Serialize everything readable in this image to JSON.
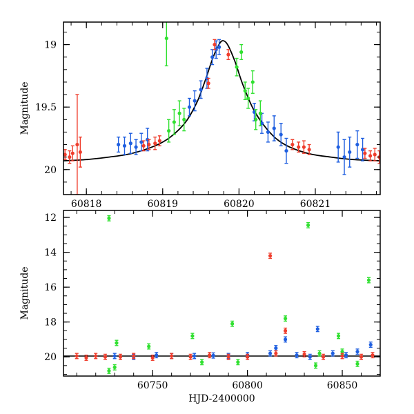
{
  "chart_data": [
    {
      "type": "scatter",
      "title": "",
      "xlabel": "",
      "ylabel": "Magnitude",
      "xlim": [
        60817.7,
        60821.85
      ],
      "ylim": [
        20.2,
        18.82
      ],
      "y_inverted": true,
      "xticks": [
        60818,
        60819,
        60820,
        60821
      ],
      "yticks": [
        19,
        19.5,
        20
      ],
      "ytick_labels": [
        "19",
        "19.5",
        "20"
      ],
      "model_curve": {
        "color": "#000000",
        "peak_x": 60819.78,
        "peak_mag": 18.97,
        "baseline_mag": 19.93,
        "x": [
          60817.7,
          60818.0,
          60818.3,
          60818.6,
          60818.9,
          60819.1,
          60819.3,
          60819.45,
          60819.55,
          60819.65,
          60819.72,
          60819.78,
          60819.85,
          60819.95,
          60820.05,
          60820.2,
          60820.4,
          60820.6,
          60820.9,
          60821.2,
          60821.5,
          60821.85
        ],
        "y": [
          19.93,
          19.92,
          19.9,
          19.87,
          19.81,
          19.74,
          19.62,
          19.46,
          19.3,
          19.12,
          19.02,
          18.97,
          19.0,
          19.14,
          19.32,
          19.53,
          19.7,
          19.8,
          19.87,
          19.9,
          19.92,
          19.93
        ]
      },
      "series": [
        {
          "color": "#1f5fe0",
          "points": [
            [
              60818.42,
              19.8,
              0.06
            ],
            [
              60818.5,
              19.81,
              0.07
            ],
            [
              60818.58,
              19.79,
              0.08
            ],
            [
              60818.65,
              19.82,
              0.06
            ],
            [
              60818.72,
              19.78,
              0.07
            ],
            [
              60818.8,
              19.76,
              0.09
            ],
            [
              60819.35,
              19.5,
              0.07
            ],
            [
              60819.42,
              19.45,
              0.08
            ],
            [
              60819.5,
              19.36,
              0.07
            ],
            [
              60819.58,
              19.27,
              0.08
            ],
            [
              60819.65,
              19.1,
              0.06
            ],
            [
              60819.7,
              19.04,
              0.07
            ],
            [
              60819.74,
              19.02,
              0.06
            ],
            [
              60820.2,
              19.54,
              0.07
            ],
            [
              60820.3,
              19.63,
              0.08
            ],
            [
              60820.38,
              19.7,
              0.08
            ],
            [
              60820.46,
              19.67,
              0.1
            ],
            [
              60820.55,
              19.72,
              0.09
            ],
            [
              60820.62,
              19.85,
              0.1
            ],
            [
              60821.3,
              19.82,
              0.12
            ],
            [
              60821.38,
              19.9,
              0.14
            ],
            [
              60821.45,
              19.86,
              0.12
            ],
            [
              60821.55,
              19.8,
              0.11
            ],
            [
              60821.62,
              19.84,
              0.09
            ]
          ]
        },
        {
          "color": "#30e030",
          "points": [
            [
              60819.05,
              18.95,
              0.22
            ],
            [
              60819.08,
              19.69,
              0.09
            ],
            [
              60819.15,
              19.62,
              0.1
            ],
            [
              60819.22,
              19.55,
              0.1
            ],
            [
              60819.28,
              19.6,
              0.09
            ],
            [
              60819.97,
              19.18,
              0.07
            ],
            [
              60820.03,
              19.06,
              0.06
            ],
            [
              60820.08,
              19.37,
              0.07
            ],
            [
              60820.12,
              19.43,
              0.08
            ],
            [
              60820.18,
              19.3,
              0.09
            ],
            [
              60820.22,
              19.6,
              0.08
            ],
            [
              60820.28,
              19.55,
              0.1
            ]
          ]
        },
        {
          "color": "#ef3d2c",
          "points": [
            [
              60817.72,
              19.88,
              0.04
            ],
            [
              60817.78,
              19.9,
              0.05
            ],
            [
              60817.82,
              19.87,
              0.06
            ],
            [
              60817.88,
              19.8,
              0.4
            ],
            [
              60817.92,
              19.86,
              0.12
            ],
            [
              60818.75,
              19.81,
              0.04
            ],
            [
              60818.82,
              19.8,
              0.04
            ],
            [
              60818.9,
              19.79,
              0.05
            ],
            [
              60818.96,
              19.77,
              0.04
            ],
            [
              60819.6,
              19.31,
              0.04
            ],
            [
              60819.68,
              19.0,
              0.04
            ],
            [
              60819.86,
              19.08,
              0.04
            ],
            [
              60820.7,
              19.8,
              0.04
            ],
            [
              60820.78,
              19.82,
              0.04
            ],
            [
              60820.85,
              19.82,
              0.05
            ],
            [
              60820.92,
              19.84,
              0.04
            ],
            [
              60821.65,
              19.87,
              0.04
            ],
            [
              60821.72,
              19.89,
              0.04
            ],
            [
              60821.78,
              19.88,
              0.05
            ],
            [
              60821.84,
              19.9,
              0.05
            ]
          ]
        }
      ]
    },
    {
      "type": "scatter",
      "title": "",
      "xlabel": "HJD-2400000",
      "ylabel": "Magnitude",
      "xlim": [
        60703,
        60870
      ],
      "ylim": [
        21.1,
        11.6
      ],
      "y_inverted": true,
      "xticks": [
        60750,
        60800,
        60850
      ],
      "yticks": [
        12,
        14,
        16,
        18,
        20
      ],
      "baseline_mag": 19.95,
      "series": [
        {
          "color": "#1f5fe0",
          "points": [
            [
              60730,
              19.95
            ],
            [
              60740,
              20.0
            ],
            [
              60752,
              19.9
            ],
            [
              60760,
              19.95
            ],
            [
              60772,
              19.95
            ],
            [
              60782,
              19.92
            ],
            [
              60790,
              19.95
            ],
            [
              60800,
              19.9
            ],
            [
              60812,
              19.8
            ],
            [
              60815,
              19.5
            ],
            [
              60820,
              19.0
            ],
            [
              60826,
              19.9
            ],
            [
              60833,
              20.0
            ],
            [
              60837,
              18.4
            ],
            [
              60845,
              19.8
            ],
            [
              60852,
              19.9
            ],
            [
              60858,
              19.7
            ],
            [
              60865,
              19.3
            ]
          ]
        },
        {
          "color": "#30e030",
          "points": [
            [
              60727,
              12.05
            ],
            [
              60727,
              20.8
            ],
            [
              60730,
              20.6
            ],
            [
              60731,
              19.2
            ],
            [
              60748,
              19.4
            ],
            [
              60771,
              18.8
            ],
            [
              60776,
              20.3
            ],
            [
              60792,
              18.1
            ],
            [
              60795,
              20.3
            ],
            [
              60820,
              17.8
            ],
            [
              60832,
              12.45
            ],
            [
              60836,
              20.5
            ],
            [
              60838,
              19.8
            ],
            [
              60848,
              18.8
            ],
            [
              60850,
              19.7
            ],
            [
              60858,
              20.4
            ],
            [
              60864,
              15.6
            ]
          ]
        },
        {
          "color": "#ef3d2c",
          "points": [
            [
              60710,
              19.95
            ],
            [
              60715,
              20.05
            ],
            [
              60720,
              19.95
            ],
            [
              60725,
              20.0
            ],
            [
              60733,
              20.0
            ],
            [
              60740,
              19.95
            ],
            [
              60750,
              20.05
            ],
            [
              60760,
              19.95
            ],
            [
              60770,
              20.0
            ],
            [
              60780,
              19.9
            ],
            [
              60790,
              20.0
            ],
            [
              60800,
              20.0
            ],
            [
              60812,
              14.2
            ],
            [
              60815,
              19.8
            ],
            [
              60820,
              18.5
            ],
            [
              60830,
              19.85
            ],
            [
              60840,
              20.0
            ],
            [
              60850,
              19.95
            ],
            [
              60860,
              20.0
            ],
            [
              60866,
              19.9
            ]
          ]
        }
      ]
    }
  ]
}
